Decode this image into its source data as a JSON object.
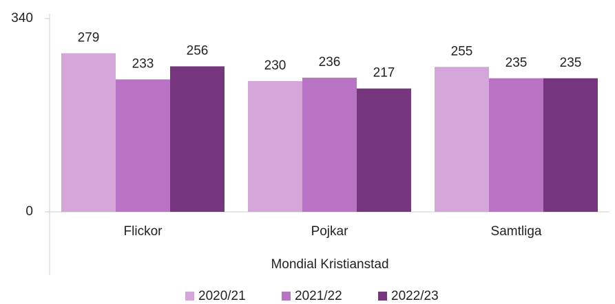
{
  "chart_data": {
    "type": "bar",
    "categories": [
      "Flickor",
      "Pojkar",
      "Samtliga"
    ],
    "x_label": "Mondial Kristianstad",
    "series": [
      {
        "name": "2020/21",
        "color": "#d3a5d8",
        "values": [
          279,
          230,
          255
        ]
      },
      {
        "name": "2021/22",
        "color": "#b973c5",
        "values": [
          233,
          236,
          235
        ]
      },
      {
        "name": "2022/23",
        "color": "#76367e",
        "values": [
          256,
          217,
          235
        ]
      }
    ],
    "ylim": [
      0,
      340
    ],
    "yticks": [
      0,
      340
    ]
  }
}
